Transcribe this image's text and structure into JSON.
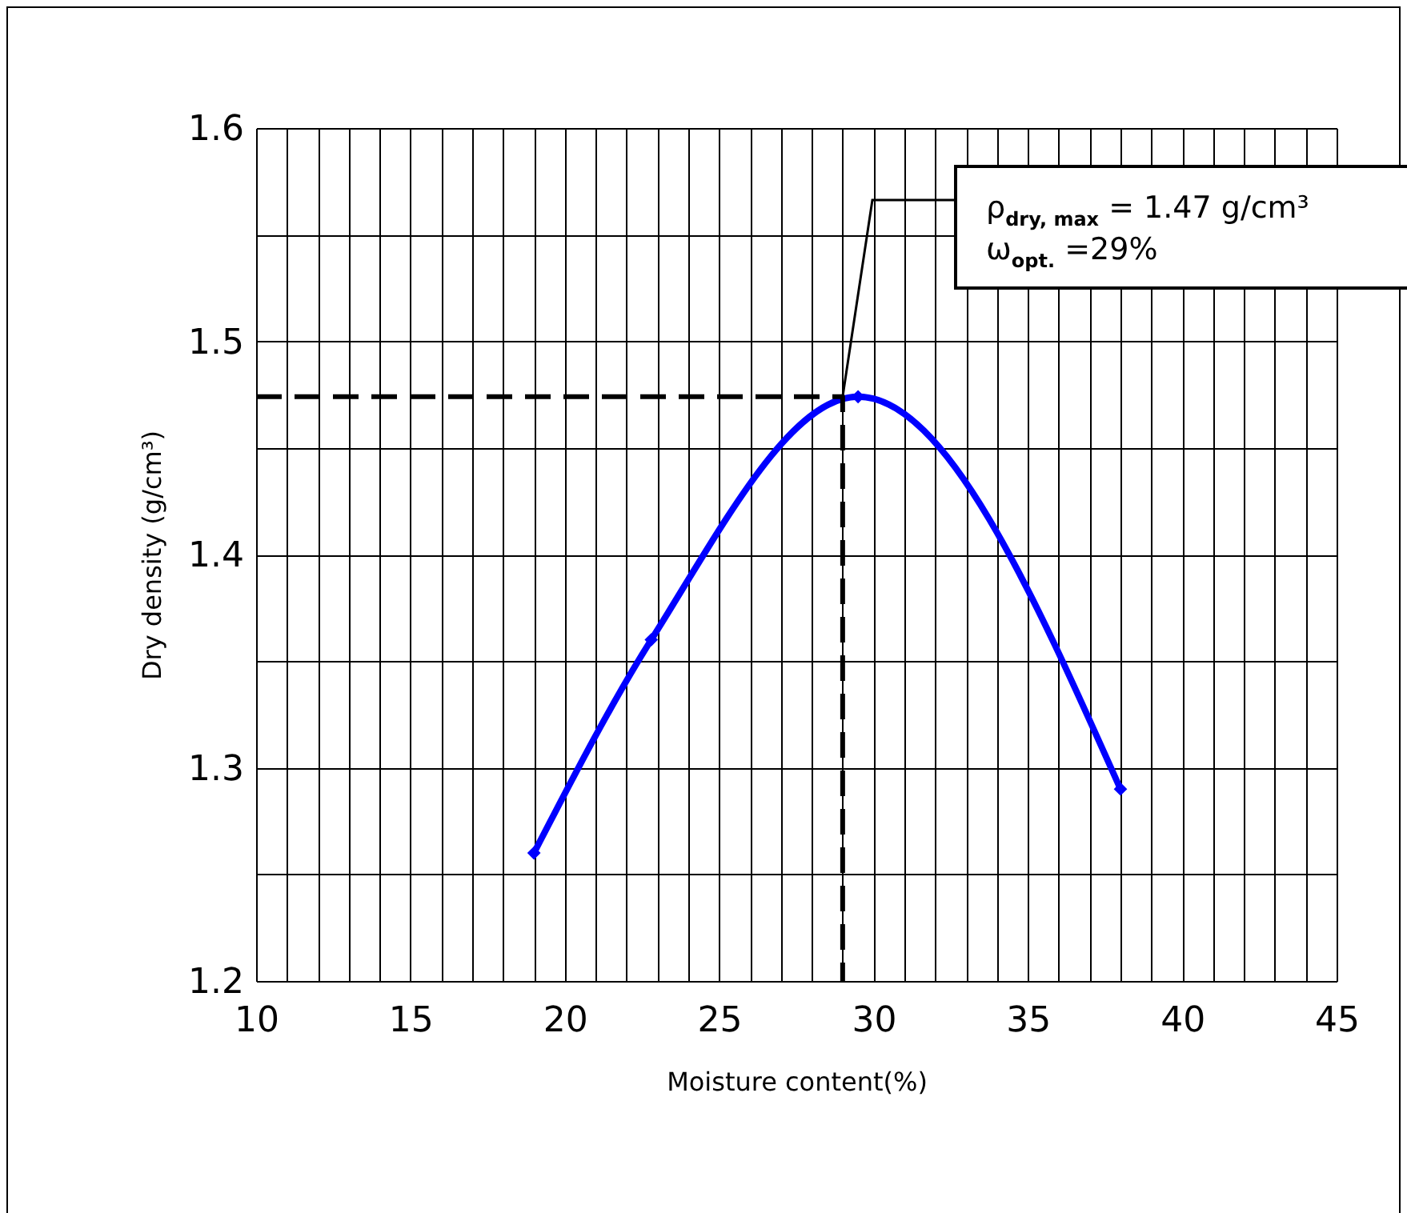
{
  "chart_data": {
    "type": "line",
    "xlabel": "Moisture content(%)",
    "ylabel": "Dry density (g/cm³)",
    "xlim": [
      10,
      45
    ],
    "ylim": [
      1.2,
      1.6
    ],
    "xticks": [
      10,
      {
        "value": 11,
        "label": null
      },
      {
        "value": 12,
        "label": null
      },
      {
        "value": 13,
        "label": null
      },
      {
        "value": 14,
        "label": null
      },
      15,
      {
        "value": 16,
        "label": null
      },
      {
        "value": 17,
        "label": null
      },
      {
        "value": 18,
        "label": null
      },
      {
        "value": 19,
        "label": null
      },
      20,
      {
        "value": 21,
        "label": null
      },
      {
        "value": 22,
        "label": null
      },
      {
        "value": 23,
        "label": null
      },
      {
        "value": 24,
        "label": null
      },
      25,
      {
        "value": 26,
        "label": null
      },
      {
        "value": 27,
        "label": null
      },
      {
        "value": 28,
        "label": null
      },
      {
        "value": 29,
        "label": null
      },
      30,
      {
        "value": 31,
        "label": null
      },
      {
        "value": 32,
        "label": null
      },
      {
        "value": 33,
        "label": null
      },
      {
        "value": 34,
        "label": null
      },
      35,
      {
        "value": 36,
        "label": null
      },
      {
        "value": 37,
        "label": null
      },
      {
        "value": 38,
        "label": null
      },
      {
        "value": 39,
        "label": null
      },
      40,
      {
        "value": 41,
        "label": null
      },
      {
        "value": 42,
        "label": null
      },
      {
        "value": 43,
        "label": null
      },
      {
        "value": 44,
        "label": null
      },
      45
    ],
    "yticks": [
      1.2,
      {
        "value": 1.25,
        "label": null
      },
      1.3,
      {
        "value": 1.35,
        "label": null
      },
      1.4,
      {
        "value": 1.45,
        "label": null
      },
      1.5,
      {
        "value": 1.55,
        "label": null
      },
      1.6
    ],
    "grid": true,
    "series": [
      {
        "color": "#0000ff",
        "x": [
          19,
          22.8,
          29.5,
          38
        ],
        "values": [
          1.26,
          1.36,
          1.474,
          1.29
        ],
        "marker": "diamond",
        "line_style": "solid"
      },
      {
        "color": "#000000",
        "x": [
          10,
          29,
          29
        ],
        "values": [
          1.474,
          1.474,
          1.2
        ],
        "marker": "none",
        "line_style": "dashed"
      }
    ],
    "annotations": [
      {
        "text": "ρ$_{dry, max}$ = 1.47 g/cm³",
        "x": 29,
        "y": 1.474
      },
      "ω$_{opt.}$ =29%"
    ]
  }
}
